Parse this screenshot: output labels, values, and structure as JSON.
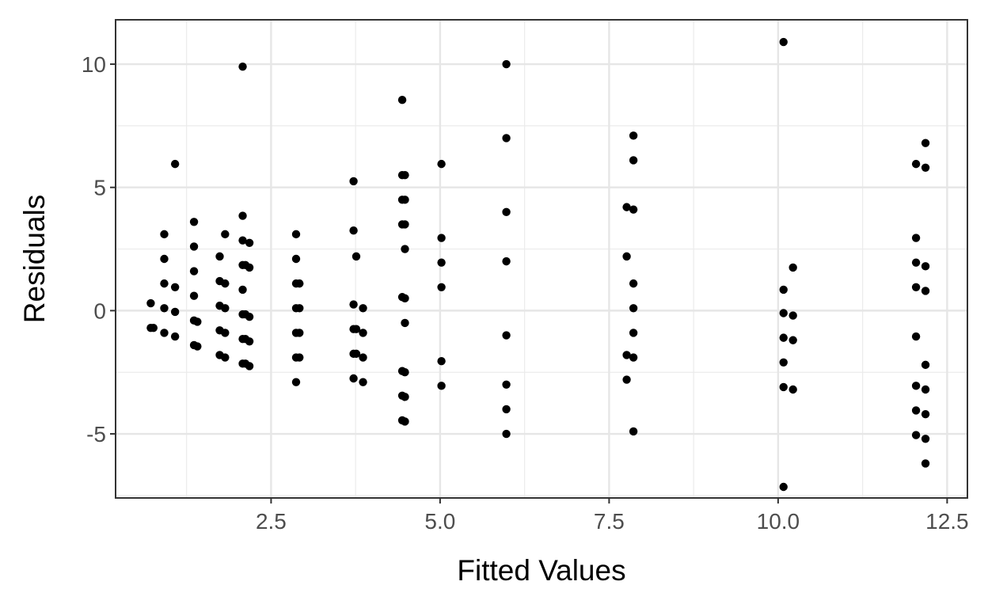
{
  "chart_data": {
    "type": "scatter",
    "title": "",
    "xlabel": "Fitted Values",
    "ylabel": "Residuals",
    "xlim": [
      0.2,
      12.8
    ],
    "ylim": [
      -7.6,
      11.8
    ],
    "x_ticks": [
      2.5,
      5.0,
      7.5,
      10.0,
      12.5
    ],
    "x_tick_labels": [
      "2.5",
      "5.0",
      "7.5",
      "10.0",
      "12.5"
    ],
    "y_ticks": [
      -5,
      0,
      5,
      10
    ],
    "y_tick_labels": [
      "-5",
      "0",
      "5",
      "10"
    ],
    "grid": true,
    "theme": "bw",
    "point_color": "#000000",
    "points": [
      {
        "x": 0.72,
        "y": 0.3
      },
      {
        "x": 0.72,
        "y": -0.7
      },
      {
        "x": 0.76,
        "y": -0.7
      },
      {
        "x": 0.92,
        "y": 3.1
      },
      {
        "x": 0.92,
        "y": 2.1
      },
      {
        "x": 0.92,
        "y": 1.1
      },
      {
        "x": 0.92,
        "y": 0.1
      },
      {
        "x": 0.92,
        "y": -0.9
      },
      {
        "x": 1.08,
        "y": 5.95
      },
      {
        "x": 1.08,
        "y": 0.95
      },
      {
        "x": 1.08,
        "y": -0.05
      },
      {
        "x": 1.08,
        "y": -1.05
      },
      {
        "x": 1.36,
        "y": 3.6
      },
      {
        "x": 1.36,
        "y": 2.6
      },
      {
        "x": 1.36,
        "y": 1.6
      },
      {
        "x": 1.36,
        "y": 0.6
      },
      {
        "x": 1.36,
        "y": -0.4
      },
      {
        "x": 1.41,
        "y": -0.45
      },
      {
        "x": 1.36,
        "y": -1.4
      },
      {
        "x": 1.41,
        "y": -1.45
      },
      {
        "x": 1.74,
        "y": 2.2
      },
      {
        "x": 1.74,
        "y": 1.2
      },
      {
        "x": 1.74,
        "y": 0.2
      },
      {
        "x": 1.74,
        "y": -0.8
      },
      {
        "x": 1.74,
        "y": -1.8
      },
      {
        "x": 1.82,
        "y": 3.1
      },
      {
        "x": 1.82,
        "y": 1.1
      },
      {
        "x": 1.82,
        "y": 0.1
      },
      {
        "x": 1.82,
        "y": -0.9
      },
      {
        "x": 1.82,
        "y": -1.9
      },
      {
        "x": 2.08,
        "y": 9.9
      },
      {
        "x": 2.08,
        "y": 3.85
      },
      {
        "x": 2.08,
        "y": 2.85
      },
      {
        "x": 2.08,
        "y": 1.85
      },
      {
        "x": 2.08,
        "y": 0.85
      },
      {
        "x": 2.08,
        "y": -0.15
      },
      {
        "x": 2.08,
        "y": -1.15
      },
      {
        "x": 2.08,
        "y": -2.15
      },
      {
        "x": 2.12,
        "y": 1.85
      },
      {
        "x": 2.12,
        "y": -0.15
      },
      {
        "x": 2.12,
        "y": -1.15
      },
      {
        "x": 2.12,
        "y": -2.15
      },
      {
        "x": 2.18,
        "y": 2.75
      },
      {
        "x": 2.18,
        "y": 1.75
      },
      {
        "x": 2.18,
        "y": -0.25
      },
      {
        "x": 2.18,
        "y": -1.25
      },
      {
        "x": 2.18,
        "y": -2.25
      },
      {
        "x": 2.87,
        "y": 3.1
      },
      {
        "x": 2.87,
        "y": 2.1
      },
      {
        "x": 2.87,
        "y": 1.1
      },
      {
        "x": 2.87,
        "y": 0.1
      },
      {
        "x": 2.87,
        "y": -0.9
      },
      {
        "x": 2.87,
        "y": -1.9
      },
      {
        "x": 2.87,
        "y": -2.9
      },
      {
        "x": 2.92,
        "y": 1.1
      },
      {
        "x": 2.92,
        "y": 0.1
      },
      {
        "x": 2.92,
        "y": -0.9
      },
      {
        "x": 2.92,
        "y": -1.9
      },
      {
        "x": 3.72,
        "y": 5.25
      },
      {
        "x": 3.72,
        "y": 3.25
      },
      {
        "x": 3.76,
        "y": 2.2
      },
      {
        "x": 3.72,
        "y": 0.25
      },
      {
        "x": 3.72,
        "y": -0.75
      },
      {
        "x": 3.76,
        "y": -0.75
      },
      {
        "x": 3.72,
        "y": -1.75
      },
      {
        "x": 3.76,
        "y": -1.75
      },
      {
        "x": 3.72,
        "y": -2.75
      },
      {
        "x": 3.86,
        "y": 0.1
      },
      {
        "x": 3.86,
        "y": -0.9
      },
      {
        "x": 3.86,
        "y": -1.9
      },
      {
        "x": 3.86,
        "y": -2.9
      },
      {
        "x": 4.44,
        "y": 8.55
      },
      {
        "x": 4.44,
        "y": 5.5
      },
      {
        "x": 4.48,
        "y": 5.5
      },
      {
        "x": 4.44,
        "y": 4.5
      },
      {
        "x": 4.48,
        "y": 4.5
      },
      {
        "x": 4.44,
        "y": 3.5
      },
      {
        "x": 4.48,
        "y": 3.5
      },
      {
        "x": 4.48,
        "y": 2.5
      },
      {
        "x": 4.44,
        "y": 0.55
      },
      {
        "x": 4.48,
        "y": 0.5
      },
      {
        "x": 4.48,
        "y": -0.5
      },
      {
        "x": 4.44,
        "y": -2.45
      },
      {
        "x": 4.48,
        "y": -2.5
      },
      {
        "x": 4.44,
        "y": -3.45
      },
      {
        "x": 4.48,
        "y": -3.5
      },
      {
        "x": 4.44,
        "y": -4.45
      },
      {
        "x": 4.48,
        "y": -4.5
      },
      {
        "x": 5.02,
        "y": 5.95
      },
      {
        "x": 5.02,
        "y": 2.95
      },
      {
        "x": 5.02,
        "y": 1.95
      },
      {
        "x": 5.02,
        "y": 0.95
      },
      {
        "x": 5.02,
        "y": -2.05
      },
      {
        "x": 5.02,
        "y": -3.05
      },
      {
        "x": 5.98,
        "y": 10.0
      },
      {
        "x": 5.98,
        "y": 7.0
      },
      {
        "x": 5.98,
        "y": 4.0
      },
      {
        "x": 5.98,
        "y": 2.0
      },
      {
        "x": 5.98,
        "y": -1.0
      },
      {
        "x": 5.98,
        "y": -3.0
      },
      {
        "x": 5.98,
        "y": -4.0
      },
      {
        "x": 5.98,
        "y": -5.0
      },
      {
        "x": 7.76,
        "y": 4.2
      },
      {
        "x": 7.76,
        "y": 2.2
      },
      {
        "x": 7.76,
        "y": -1.8
      },
      {
        "x": 7.76,
        "y": -2.8
      },
      {
        "x": 7.86,
        "y": 7.1
      },
      {
        "x": 7.86,
        "y": 6.1
      },
      {
        "x": 7.86,
        "y": 4.1
      },
      {
        "x": 7.86,
        "y": 1.1
      },
      {
        "x": 7.86,
        "y": 0.1
      },
      {
        "x": 7.86,
        "y": -0.9
      },
      {
        "x": 7.86,
        "y": -1.9
      },
      {
        "x": 7.86,
        "y": -4.9
      },
      {
        "x": 10.08,
        "y": 10.9
      },
      {
        "x": 10.08,
        "y": 0.85
      },
      {
        "x": 10.08,
        "y": -0.1
      },
      {
        "x": 10.08,
        "y": -1.1
      },
      {
        "x": 10.08,
        "y": -2.1
      },
      {
        "x": 10.08,
        "y": -3.1
      },
      {
        "x": 10.08,
        "y": -7.15
      },
      {
        "x": 10.22,
        "y": 1.75
      },
      {
        "x": 10.22,
        "y": -0.2
      },
      {
        "x": 10.22,
        "y": -1.2
      },
      {
        "x": 10.22,
        "y": -3.2
      },
      {
        "x": 12.04,
        "y": 5.95
      },
      {
        "x": 12.04,
        "y": 2.95
      },
      {
        "x": 12.04,
        "y": 1.95
      },
      {
        "x": 12.04,
        "y": 0.95
      },
      {
        "x": 12.04,
        "y": -1.05
      },
      {
        "x": 12.04,
        "y": -3.05
      },
      {
        "x": 12.04,
        "y": -4.05
      },
      {
        "x": 12.04,
        "y": -5.05
      },
      {
        "x": 12.18,
        "y": 6.8
      },
      {
        "x": 12.18,
        "y": 5.8
      },
      {
        "x": 12.18,
        "y": 1.8
      },
      {
        "x": 12.18,
        "y": 0.8
      },
      {
        "x": 12.18,
        "y": -2.2
      },
      {
        "x": 12.18,
        "y": -3.2
      },
      {
        "x": 12.18,
        "y": -4.2
      },
      {
        "x": 12.18,
        "y": -5.2
      },
      {
        "x": 12.18,
        "y": -6.2
      }
    ]
  }
}
